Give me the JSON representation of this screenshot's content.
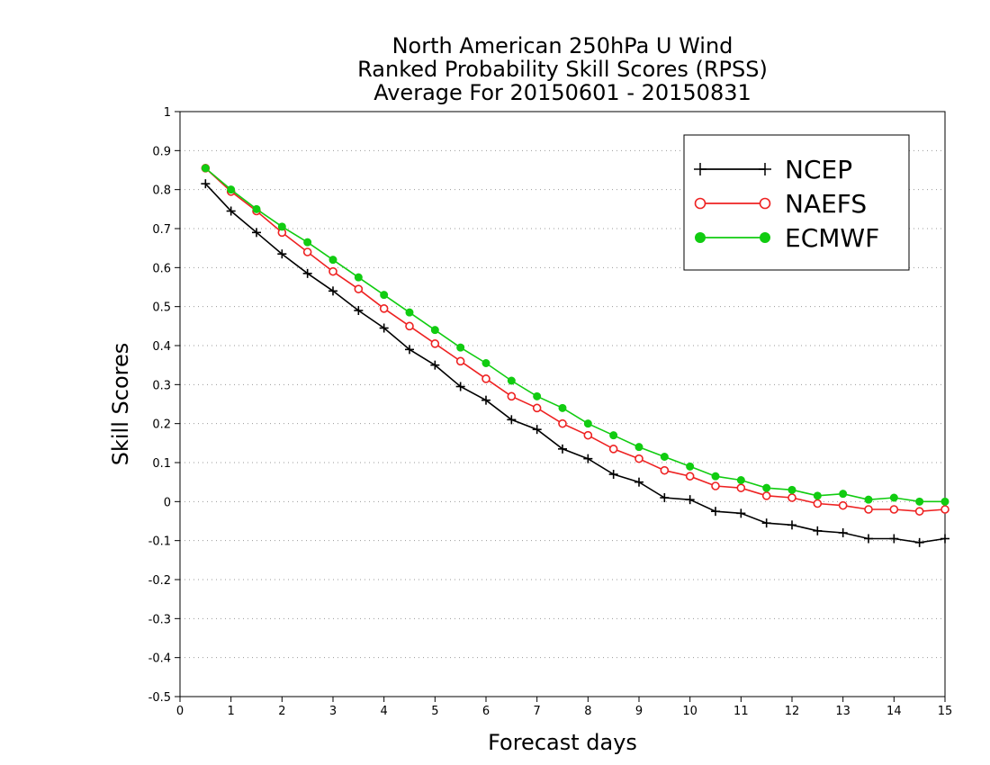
{
  "chart_data": {
    "type": "line",
    "title": [
      "North American 250hPa U Wind",
      "Ranked Probability Skill Scores (RPSS)",
      "Average For 20150601 - 20150831"
    ],
    "xlabel": "Forecast days",
    "ylabel": "Skill Scores",
    "xlim": [
      0,
      15
    ],
    "ylim": [
      -0.5,
      1
    ],
    "xticks": [
      "0",
      "1",
      "2",
      "3",
      "4",
      "5",
      "6",
      "7",
      "8",
      "9",
      "10",
      "11",
      "12",
      "13",
      "14",
      "15"
    ],
    "yticks": [
      "-0.5",
      "-0.4",
      "-0.3",
      "-0.2",
      "-0.1",
      "0",
      "0.1",
      "0.2",
      "0.3",
      "0.4",
      "0.5",
      "0.6",
      "0.7",
      "0.8",
      "0.9",
      "1"
    ],
    "grid": "horizontal dotted",
    "legend_position": "top-right",
    "x": [
      0.5,
      1,
      1.5,
      2,
      2.5,
      3,
      3.5,
      4,
      4.5,
      5,
      5.5,
      6,
      6.5,
      7,
      7.5,
      8,
      8.5,
      9,
      9.5,
      10,
      10.5,
      11,
      11.5,
      12,
      12.5,
      13,
      13.5,
      14,
      14.5,
      15
    ],
    "series": [
      {
        "name": "NCEP",
        "color": "#000000",
        "marker": "plus",
        "values": [
          0.815,
          0.745,
          0.69,
          0.635,
          0.585,
          0.54,
          0.49,
          0.445,
          0.39,
          0.35,
          0.295,
          0.26,
          0.21,
          0.185,
          0.135,
          0.11,
          0.07,
          0.05,
          0.01,
          0.005,
          -0.025,
          -0.03,
          -0.055,
          -0.06,
          -0.075,
          -0.08,
          -0.095,
          -0.095,
          -0.105,
          -0.095
        ]
      },
      {
        "name": "NAEFS",
        "color": "#ee2222",
        "marker": "open-circle",
        "values": [
          0.855,
          0.795,
          0.745,
          0.69,
          0.64,
          0.59,
          0.545,
          0.495,
          0.45,
          0.405,
          0.36,
          0.315,
          0.27,
          0.24,
          0.2,
          0.17,
          0.135,
          0.11,
          0.08,
          0.065,
          0.04,
          0.035,
          0.015,
          0.01,
          -0.005,
          -0.01,
          -0.02,
          -0.02,
          -0.025,
          -0.02
        ]
      },
      {
        "name": "ECMWF",
        "color": "#11cc11",
        "marker": "filled-circle",
        "values": [
          0.855,
          0.8,
          0.75,
          0.705,
          0.665,
          0.62,
          0.575,
          0.53,
          0.485,
          0.44,
          0.395,
          0.355,
          0.31,
          0.27,
          0.24,
          0.2,
          0.17,
          0.14,
          0.115,
          0.09,
          0.065,
          0.055,
          0.035,
          0.03,
          0.015,
          0.02,
          0.005,
          0.01,
          0.0,
          0.0
        ]
      }
    ]
  }
}
